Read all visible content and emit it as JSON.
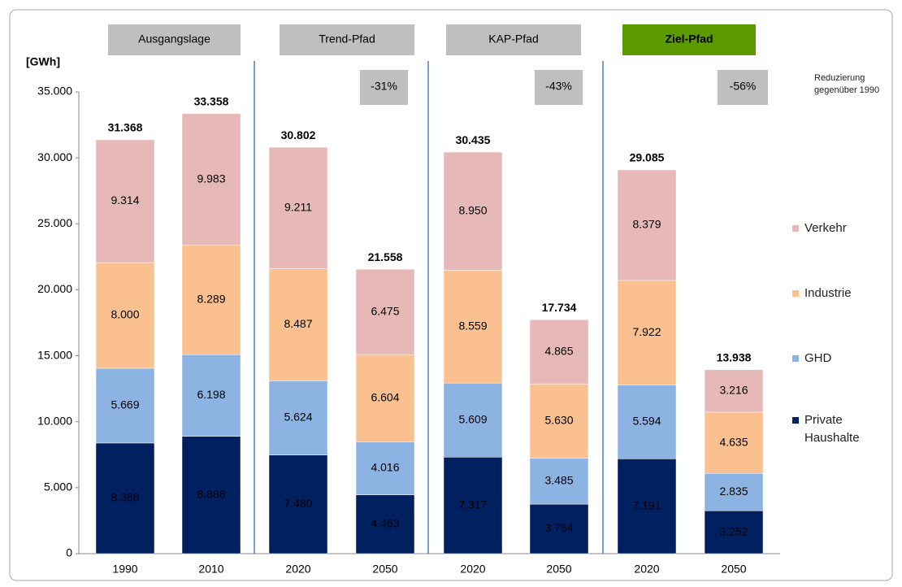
{
  "chart_data": {
    "type": "stacked-bar",
    "y_label": "[GWh]",
    "categories": [
      "1990",
      "2010",
      "2020",
      "2050",
      "2020",
      "2050",
      "2020",
      "2050"
    ],
    "groups": [
      {
        "label": "Ausgangslage",
        "highlight": false
      },
      {
        "label": "Trend-Pfad",
        "highlight": false,
        "reduction": "-31%"
      },
      {
        "label": "KAP-Pfad",
        "highlight": false,
        "reduction": "-43%"
      },
      {
        "label": "Ziel-Pfad",
        "highlight": true,
        "reduction": "-56%"
      }
    ],
    "reduction_note": "Reduzierung gegenüber 1990",
    "series": [
      {
        "name": "Private Haushalte",
        "color": "#002060",
        "values": [
          8386,
          8888,
          7480,
          4463,
          7317,
          3754,
          7191,
          3252
        ],
        "value_labels": [
          "8.386",
          "8.888",
          "7.480",
          "4.463",
          "7.317",
          "3.754",
          "7.191",
          "3.252"
        ]
      },
      {
        "name": "GHD",
        "color": "#8db3e2",
        "values": [
          5669,
          6198,
          5624,
          4016,
          5609,
          3485,
          5594,
          2835
        ],
        "value_labels": [
          "5.669",
          "6.198",
          "5.624",
          "4.016",
          "5.609",
          "3.485",
          "5.594",
          "2.835"
        ]
      },
      {
        "name": "Industrie",
        "color": "#fac08f",
        "values": [
          8000,
          8289,
          8487,
          6604,
          8559,
          5630,
          7922,
          4635
        ],
        "value_labels": [
          "8.000",
          "8.289",
          "8.487",
          "6.604",
          "8.559",
          "5.630",
          "7.922",
          "4.635"
        ]
      },
      {
        "name": "Verkehr",
        "color": "#e6b9b8",
        "values": [
          9314,
          9983,
          9211,
          6475,
          8950,
          4865,
          8379,
          3216
        ],
        "value_labels": [
          "9.314",
          "9.983",
          "9.211",
          "6.475",
          "8.950",
          "4.865",
          "8.379",
          "3.216"
        ]
      }
    ],
    "totals": {
      "values": [
        31368,
        33358,
        30802,
        21558,
        30435,
        17734,
        29085,
        13938
      ],
      "value_labels": [
        "31.368",
        "33.358",
        "30.802",
        "21.558",
        "30.435",
        "17.734",
        "29.085",
        "13.938"
      ]
    },
    "ylim": [
      0,
      35000
    ],
    "yticks": [
      0,
      {
        "value": 5000,
        "label": "5.000"
      },
      {
        "value": 10000,
        "label": "10.000"
      },
      {
        "value": 15000,
        "label": "15.000"
      },
      {
        "value": 20000,
        "label": "20.000"
      },
      {
        "value": 25000,
        "label": "25.000"
      },
      {
        "value": 30000,
        "label": "30.000"
      },
      {
        "value": 35000,
        "label": "35.000"
      }
    ],
    "grid": false
  }
}
